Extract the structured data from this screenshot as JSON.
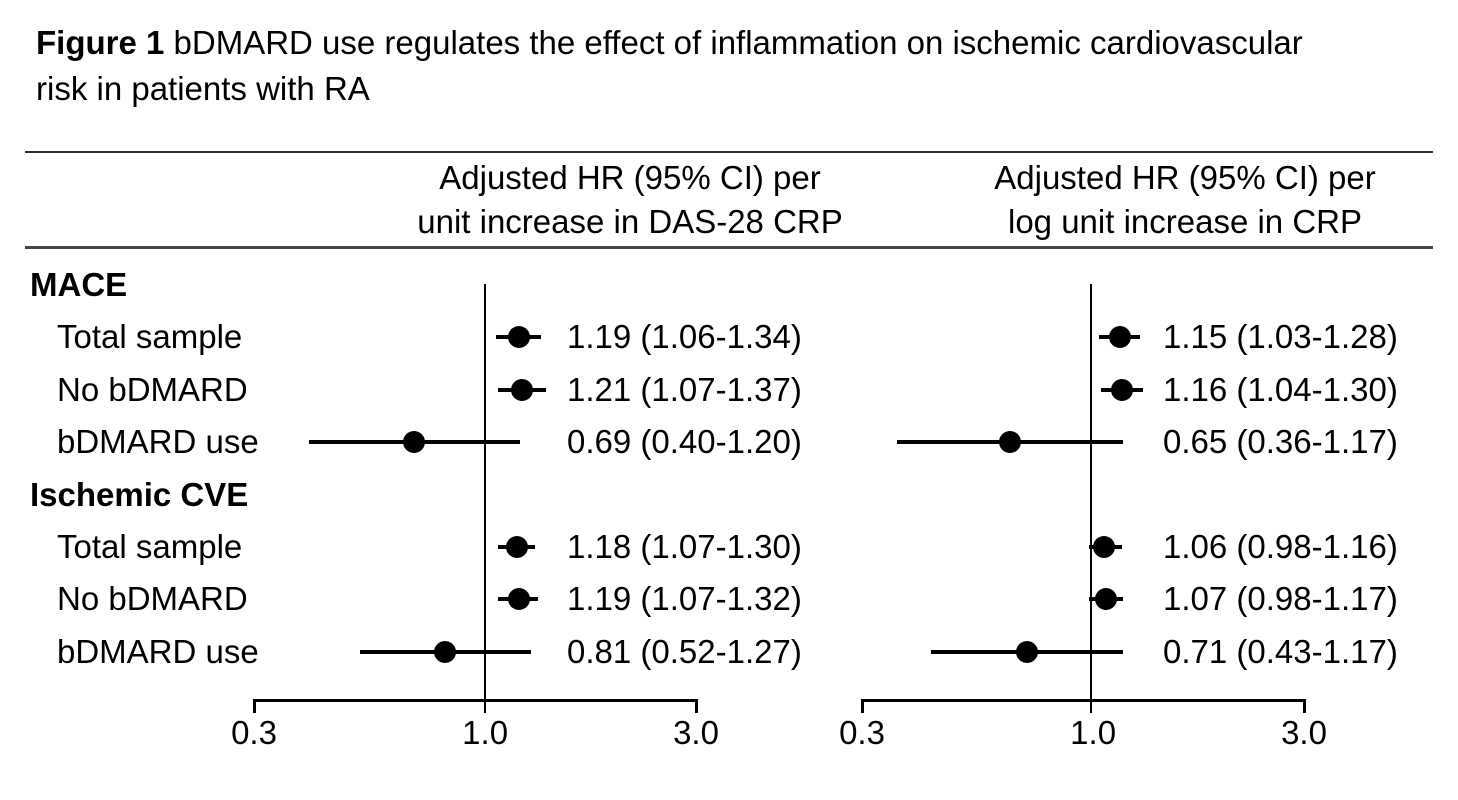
{
  "figure": {
    "title_figure_label": "Figure 1",
    "title_line1_rest": " bDMARD use regulates the effect of inflammation on ischemic cardiovascular",
    "title_line2": "risk in patients with RA"
  },
  "colors": {
    "marker": "#000000",
    "ci_line": "#000000",
    "reference_line": "#000000",
    "text": "#000000",
    "rule": "#454545",
    "background": "#ffffff"
  },
  "chart_data": {
    "type": "forest",
    "scale": "log",
    "axis": {
      "min": 0.3,
      "max": 3.0,
      "reference": 1.0,
      "ticks": [
        {
          "label": "0.3",
          "value": 0.3
        },
        {
          "label": "1.0",
          "value": 1.0
        },
        {
          "label": "3.0",
          "value": 3.0
        }
      ]
    },
    "panels": [
      {
        "id": "das28",
        "header_line1": "Adjusted HR (95% CI) per",
        "header_line2": "unit increase in DAS-28 CRP"
      },
      {
        "id": "crp",
        "header_line1": "Adjusted HR (95% CI) per",
        "header_line2": "log unit increase in CRP"
      }
    ],
    "groups": [
      {
        "label": "MACE",
        "rows": [
          {
            "label": "Total sample",
            "das28": {
              "hr": 1.19,
              "lo": 1.06,
              "hi": 1.34,
              "text": "1.19 (1.06-1.34)"
            },
            "crp": {
              "hr": 1.15,
              "lo": 1.03,
              "hi": 1.28,
              "text": "1.15 (1.03-1.28)"
            }
          },
          {
            "label": "No bDMARD",
            "das28": {
              "hr": 1.21,
              "lo": 1.07,
              "hi": 1.37,
              "text": "1.21 (1.07-1.37)"
            },
            "crp": {
              "hr": 1.16,
              "lo": 1.04,
              "hi": 1.3,
              "text": "1.16 (1.04-1.30)"
            }
          },
          {
            "label": "bDMARD use",
            "das28": {
              "hr": 0.69,
              "lo": 0.4,
              "hi": 1.2,
              "text": "0.69 (0.40-1.20)"
            },
            "crp": {
              "hr": 0.65,
              "lo": 0.36,
              "hi": 1.17,
              "text": "0.65 (0.36-1.17)"
            }
          }
        ]
      },
      {
        "label": "Ischemic CVE",
        "rows": [
          {
            "label": "Total sample",
            "das28": {
              "hr": 1.18,
              "lo": 1.07,
              "hi": 1.3,
              "text": "1.18 (1.07-1.30)"
            },
            "crp": {
              "hr": 1.06,
              "lo": 0.98,
              "hi": 1.16,
              "text": "1.06 (0.98-1.16)"
            }
          },
          {
            "label": "No bDMARD",
            "das28": {
              "hr": 1.19,
              "lo": 1.07,
              "hi": 1.32,
              "text": "1.19 (1.07-1.32)"
            },
            "crp": {
              "hr": 1.07,
              "lo": 0.98,
              "hi": 1.17,
              "text": "1.07 (0.98-1.17)"
            }
          },
          {
            "label": "bDMARD use",
            "das28": {
              "hr": 0.81,
              "lo": 0.52,
              "hi": 1.27,
              "text": "0.81 (0.52-1.27)"
            },
            "crp": {
              "hr": 0.71,
              "lo": 0.43,
              "hi": 1.17,
              "text": "0.71 (0.43-1.17)"
            }
          }
        ]
      }
    ]
  }
}
